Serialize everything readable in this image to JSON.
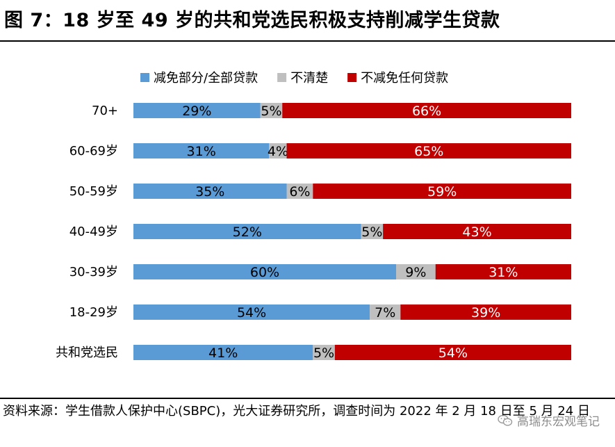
{
  "figure": {
    "title": "图 7：18 岁至 49 岁的共和党选民积极支持削减学生贷款",
    "source": "资料来源：学生借款人保护中心(SBPC)，光大证券研究所，调查时间为 2022 年 2 月 18 日至 5 月 24 日",
    "watermark": "高瑞东宏观笔记",
    "watermark_icon": "wechat-icon"
  },
  "chart_data": {
    "type": "bar",
    "orientation": "horizontal",
    "stacked": true,
    "stack_mode": "percent",
    "categories": [
      "70+",
      "60-69岁",
      "50-59岁",
      "40-49岁",
      "30-39岁",
      "18-29岁",
      "共和党选民"
    ],
    "series": [
      {
        "name": "减免部分/全部贷款",
        "color": "#5b9bd5",
        "values": [
          29,
          31,
          35,
          52,
          60,
          54,
          41
        ],
        "labels": [
          "29%",
          "31%",
          "35%",
          "52%",
          "60%",
          "54%",
          "41%"
        ]
      },
      {
        "name": "不清楚",
        "color": "#bfbfbf",
        "values": [
          5,
          4,
          6,
          5,
          9,
          7,
          5
        ],
        "labels": [
          "5%",
          "4%",
          "6%",
          "5%",
          "9%",
          "7%",
          "5%"
        ]
      },
      {
        "name": "不减免任何贷款",
        "color": "#c00000",
        "values": [
          66,
          65,
          59,
          43,
          31,
          39,
          54
        ],
        "labels": [
          "66%",
          "65%",
          "59%",
          "43%",
          "31%",
          "39%",
          "54%"
        ]
      }
    ],
    "xlim": [
      0,
      100
    ],
    "legend_position": "top",
    "grid": false
  }
}
